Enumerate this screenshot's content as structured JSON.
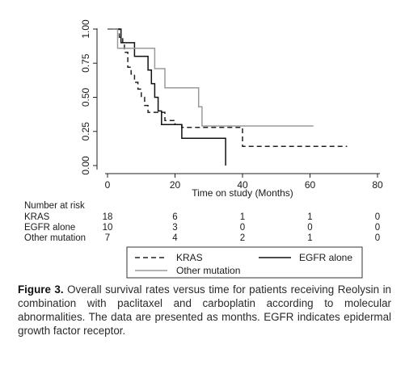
{
  "chart_data": {
    "type": "line",
    "subtype": "kaplan-meier step curves",
    "xlabel": "Time on study (Months)",
    "ylabel": "",
    "xlim": [
      0,
      80
    ],
    "ylim": [
      0,
      1
    ],
    "x_ticks": [
      "0",
      "20",
      "40",
      "60",
      "80"
    ],
    "y_ticks": [
      "0.00",
      "0.25",
      "0.50",
      "0.75",
      "1.00"
    ],
    "grid": false,
    "legend_position": "bottom",
    "series": [
      {
        "name": "KRAS",
        "color": "#222222",
        "dash": "dashed",
        "points": [
          [
            0,
            1.0
          ],
          [
            3.5,
            1.0
          ],
          [
            3.5,
            0.94
          ],
          [
            4.5,
            0.94
          ],
          [
            4.5,
            0.89
          ],
          [
            5,
            0.89
          ],
          [
            5,
            0.83
          ],
          [
            6,
            0.83
          ],
          [
            6,
            0.72
          ],
          [
            7,
            0.72
          ],
          [
            7,
            0.67
          ],
          [
            8,
            0.67
          ],
          [
            8,
            0.61
          ],
          [
            9,
            0.61
          ],
          [
            9,
            0.56
          ],
          [
            10,
            0.56
          ],
          [
            10,
            0.5
          ],
          [
            11,
            0.5
          ],
          [
            11,
            0.44
          ],
          [
            12,
            0.44
          ],
          [
            12,
            0.39
          ],
          [
            17,
            0.39
          ],
          [
            17,
            0.33
          ],
          [
            20,
            0.33
          ],
          [
            20,
            0.3
          ],
          [
            22,
            0.3
          ],
          [
            22,
            0.28
          ],
          [
            40,
            0.28
          ],
          [
            40,
            0.14
          ],
          [
            71,
            0.14
          ]
        ]
      },
      {
        "name": "EGFR alone",
        "color": "#111111",
        "dash": "solid",
        "points": [
          [
            0,
            1.0
          ],
          [
            4,
            1.0
          ],
          [
            4,
            0.9
          ],
          [
            8,
            0.9
          ],
          [
            8,
            0.8
          ],
          [
            12,
            0.8
          ],
          [
            12,
            0.7
          ],
          [
            13,
            0.7
          ],
          [
            13,
            0.6
          ],
          [
            14,
            0.6
          ],
          [
            14,
            0.5
          ],
          [
            15,
            0.5
          ],
          [
            15,
            0.4
          ],
          [
            16,
            0.4
          ],
          [
            16,
            0.3
          ],
          [
            22,
            0.3
          ],
          [
            22,
            0.2
          ],
          [
            35,
            0.2
          ],
          [
            35,
            0.0
          ]
        ]
      },
      {
        "name": "Other mutation",
        "color": "#9a9a9a",
        "dash": "solid",
        "points": [
          [
            0,
            1.0
          ],
          [
            3,
            1.0
          ],
          [
            3,
            0.86
          ],
          [
            14,
            0.86
          ],
          [
            14,
            0.71
          ],
          [
            17,
            0.71
          ],
          [
            17,
            0.57
          ],
          [
            27,
            0.57
          ],
          [
            27,
            0.43
          ],
          [
            28,
            0.43
          ],
          [
            28,
            0.29
          ],
          [
            61,
            0.29
          ]
        ]
      }
    ]
  },
  "risk_table": {
    "title": "Number at risk",
    "rows": [
      {
        "label": "KRAS",
        "values": [
          "18",
          "6",
          "1",
          "1",
          "0"
        ]
      },
      {
        "label": "EGFR alone",
        "values": [
          "10",
          "3",
          "0",
          "0",
          "0"
        ]
      },
      {
        "label": "Other mutation",
        "values": [
          "7",
          "4",
          "2",
          "1",
          "0"
        ]
      }
    ]
  },
  "caption": {
    "label": "Figure 3.",
    "text": "Overall survival rates versus time for patients receiving Reolysin in combination with paclitaxel and carboplatin according to molecular abnormalities. The data are presented as months. EGFR indicates epidermal growth factor receptor."
  }
}
